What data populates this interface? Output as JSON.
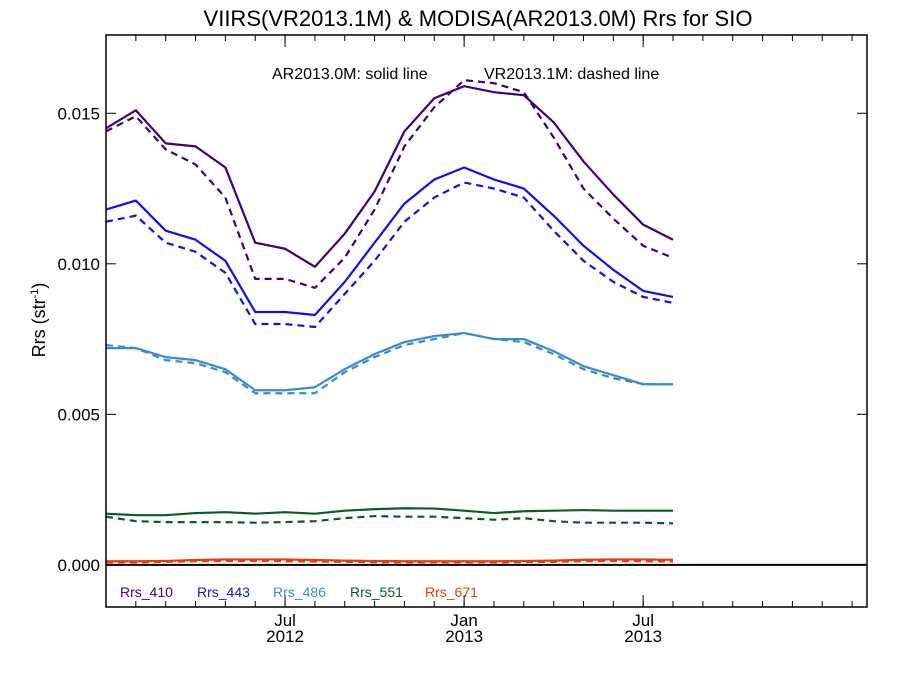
{
  "chart_data": {
    "type": "line",
    "title": "VIIRS(VR2013.1M) & MODISA(AR2013.0M)  Rrs for SIO",
    "subtitle": {
      "solid": "AR2013.0M: solid line",
      "dashed": "VR2013.1M: dashed line"
    },
    "ylabel": "Rrs (str",
    "ylabel_sup": "-1",
    "ylabel_close": ")",
    "ylim": [
      -0.0014,
      0.0176
    ],
    "xlim_month_index": [
      0,
      25.5
    ],
    "y_ticks": [
      {
        "value": 0.0,
        "label": "0.000"
      },
      {
        "value": 0.005,
        "label": "0.005"
      },
      {
        "value": 0.01,
        "label": "0.010"
      },
      {
        "value": 0.015,
        "label": "0.015"
      }
    ],
    "x_ticks": [
      {
        "date": "2012-07",
        "month": "Jul",
        "year": "2012"
      },
      {
        "date": "2013-01",
        "month": "Jan",
        "year": "2013"
      },
      {
        "date": "2013-07",
        "month": "Jul",
        "year": "2013"
      }
    ],
    "x": [
      "2012-01",
      "2012-02",
      "2012-03",
      "2012-04",
      "2012-05",
      "2012-06",
      "2012-07",
      "2012-08",
      "2012-09",
      "2012-10",
      "2012-11",
      "2012-12",
      "2013-01",
      "2013-02",
      "2013-03",
      "2013-04",
      "2013-05",
      "2013-06",
      "2013-07",
      "2013-08"
    ],
    "series": [
      {
        "name": "Rrs_410",
        "color": "#3f0079",
        "style": "solid",
        "values": [
          0.0145,
          0.0151,
          0.014,
          0.0139,
          0.0132,
          0.0107,
          0.0105,
          0.0099,
          0.011,
          0.0124,
          0.0144,
          0.0155,
          0.0159,
          0.0157,
          0.0156,
          0.0147,
          0.0134,
          0.0123,
          0.0113,
          0.0108
        ]
      },
      {
        "name": "Rrs_410",
        "color": "#3f0079",
        "style": "dashed",
        "values": [
          0.0144,
          0.0149,
          0.0138,
          0.0133,
          0.0122,
          0.0095,
          0.0095,
          0.0092,
          0.0102,
          0.0118,
          0.0139,
          0.0152,
          0.0161,
          0.016,
          0.0157,
          0.0142,
          0.0125,
          0.0115,
          0.0106,
          0.0102
        ]
      },
      {
        "name": "Rrs_443",
        "color": "#1010ee",
        "style": "solid",
        "values": [
          0.0118,
          0.0121,
          0.0111,
          0.0108,
          0.0101,
          0.0084,
          0.0084,
          0.0083,
          0.0094,
          0.0107,
          0.012,
          0.0128,
          0.0132,
          0.0128,
          0.0125,
          0.0116,
          0.0106,
          0.0098,
          0.0091,
          0.0089
        ]
      },
      {
        "name": "Rrs_443",
        "color": "#1010ee",
        "style": "dashed",
        "values": [
          0.0114,
          0.0116,
          0.0107,
          0.0104,
          0.0097,
          0.008,
          0.008,
          0.0079,
          0.009,
          0.0101,
          0.0114,
          0.0122,
          0.0127,
          0.0125,
          0.0122,
          0.0111,
          0.0101,
          0.0094,
          0.0089,
          0.0087
        ]
      },
      {
        "name": "Rrs_486",
        "color": "#3a8cc8",
        "style": "solid",
        "values": [
          0.0072,
          0.0072,
          0.0069,
          0.0068,
          0.0065,
          0.0058,
          0.0058,
          0.0059,
          0.0065,
          0.007,
          0.0074,
          0.0076,
          0.0077,
          0.0075,
          0.0075,
          0.0071,
          0.0066,
          0.0063,
          0.006,
          0.006
        ]
      },
      {
        "name": "Rrs_486",
        "color": "#3a8cc8",
        "style": "dashed",
        "values": [
          0.0073,
          0.0072,
          0.0068,
          0.0067,
          0.0064,
          0.0057,
          0.0057,
          0.0057,
          0.0064,
          0.0069,
          0.0073,
          0.0075,
          0.0077,
          0.0075,
          0.0074,
          0.007,
          0.0065,
          0.0062,
          0.006,
          0.006
        ]
      },
      {
        "name": "Rrs_551",
        "color": "#0b5a2c",
        "style": "solid",
        "values": [
          0.0017,
          0.00165,
          0.00165,
          0.00172,
          0.00175,
          0.0017,
          0.00175,
          0.0017,
          0.0018,
          0.00185,
          0.00188,
          0.00187,
          0.0018,
          0.00172,
          0.00178,
          0.0018,
          0.00182,
          0.0018,
          0.0018,
          0.0018
        ]
      },
      {
        "name": "Rrs_551",
        "color": "#0b5a2c",
        "style": "dashed",
        "values": [
          0.0016,
          0.00145,
          0.00142,
          0.00142,
          0.00142,
          0.0014,
          0.00142,
          0.00145,
          0.00155,
          0.00162,
          0.0016,
          0.0016,
          0.00155,
          0.0015,
          0.00155,
          0.00145,
          0.0014,
          0.0014,
          0.0014,
          0.00138
        ]
      },
      {
        "name": "Rrs_671",
        "color": "#e0400c",
        "style": "solid",
        "values": [
          0.00012,
          0.00012,
          0.00013,
          0.00016,
          0.00018,
          0.00018,
          0.00018,
          0.00016,
          0.00014,
          0.00013,
          0.00012,
          0.00012,
          0.00012,
          0.00012,
          0.00013,
          0.00014,
          0.00017,
          0.00018,
          0.00018,
          0.00017
        ]
      },
      {
        "name": "Rrs_671",
        "color": "#e0400c",
        "style": "dashed",
        "values": [
          8e-05,
          8e-05,
          0.0001,
          0.00012,
          0.00013,
          0.00013,
          0.00012,
          0.00011,
          0.0001,
          9e-05,
          8e-05,
          8e-05,
          8e-05,
          8e-05,
          9e-05,
          0.0001,
          0.00012,
          0.00013,
          0.00012,
          0.00011
        ]
      }
    ],
    "legend": [
      {
        "label": "Rrs_410",
        "color": "#3f0079"
      },
      {
        "label": "Rrs_443",
        "color": "#1010ee"
      },
      {
        "label": "Rrs_486",
        "color": "#3a8cc8"
      },
      {
        "label": "Rrs_551",
        "color": "#0b5a2c"
      },
      {
        "label": "Rrs_671",
        "color": "#e0400c"
      }
    ],
    "legend_position": "bottom-left",
    "zero_line": true,
    "grid": false
  }
}
